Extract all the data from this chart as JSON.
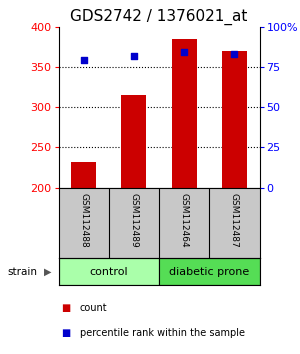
{
  "title": "GDS2742 / 1376021_at",
  "samples": [
    "GSM112488",
    "GSM112489",
    "GSM112464",
    "GSM112487"
  ],
  "bar_values": [
    232,
    315,
    384,
    370
  ],
  "percentile_values": [
    79,
    82,
    84,
    83
  ],
  "bar_color": "#cc0000",
  "dot_color": "#0000cc",
  "ylim_left": [
    200,
    400
  ],
  "ylim_right": [
    0,
    100
  ],
  "yticks_left": [
    200,
    250,
    300,
    350,
    400
  ],
  "yticks_right": [
    0,
    25,
    50,
    75,
    100
  ],
  "ytick_labels_right": [
    "0",
    "25",
    "50",
    "75",
    "100%"
  ],
  "grid_yticks": [
    250,
    300,
    350
  ],
  "groups": [
    {
      "label": "control",
      "color": "#aaffaa",
      "samples": [
        0,
        1
      ]
    },
    {
      "label": "diabetic prone",
      "color": "#55dd55",
      "samples": [
        2,
        3
      ]
    }
  ],
  "strain_label": "strain",
  "legend_items": [
    {
      "label": "count",
      "color": "#cc0000",
      "marker": "s"
    },
    {
      "label": "percentile rank within the sample",
      "color": "#0000cc",
      "marker": "s"
    }
  ],
  "bar_width": 0.5,
  "background_color": "#ffffff",
  "plot_bg": "#ffffff",
  "label_area_bg": "#c8c8c8",
  "title_fontsize": 11,
  "tick_fontsize": 8,
  "label_fontsize": 8
}
